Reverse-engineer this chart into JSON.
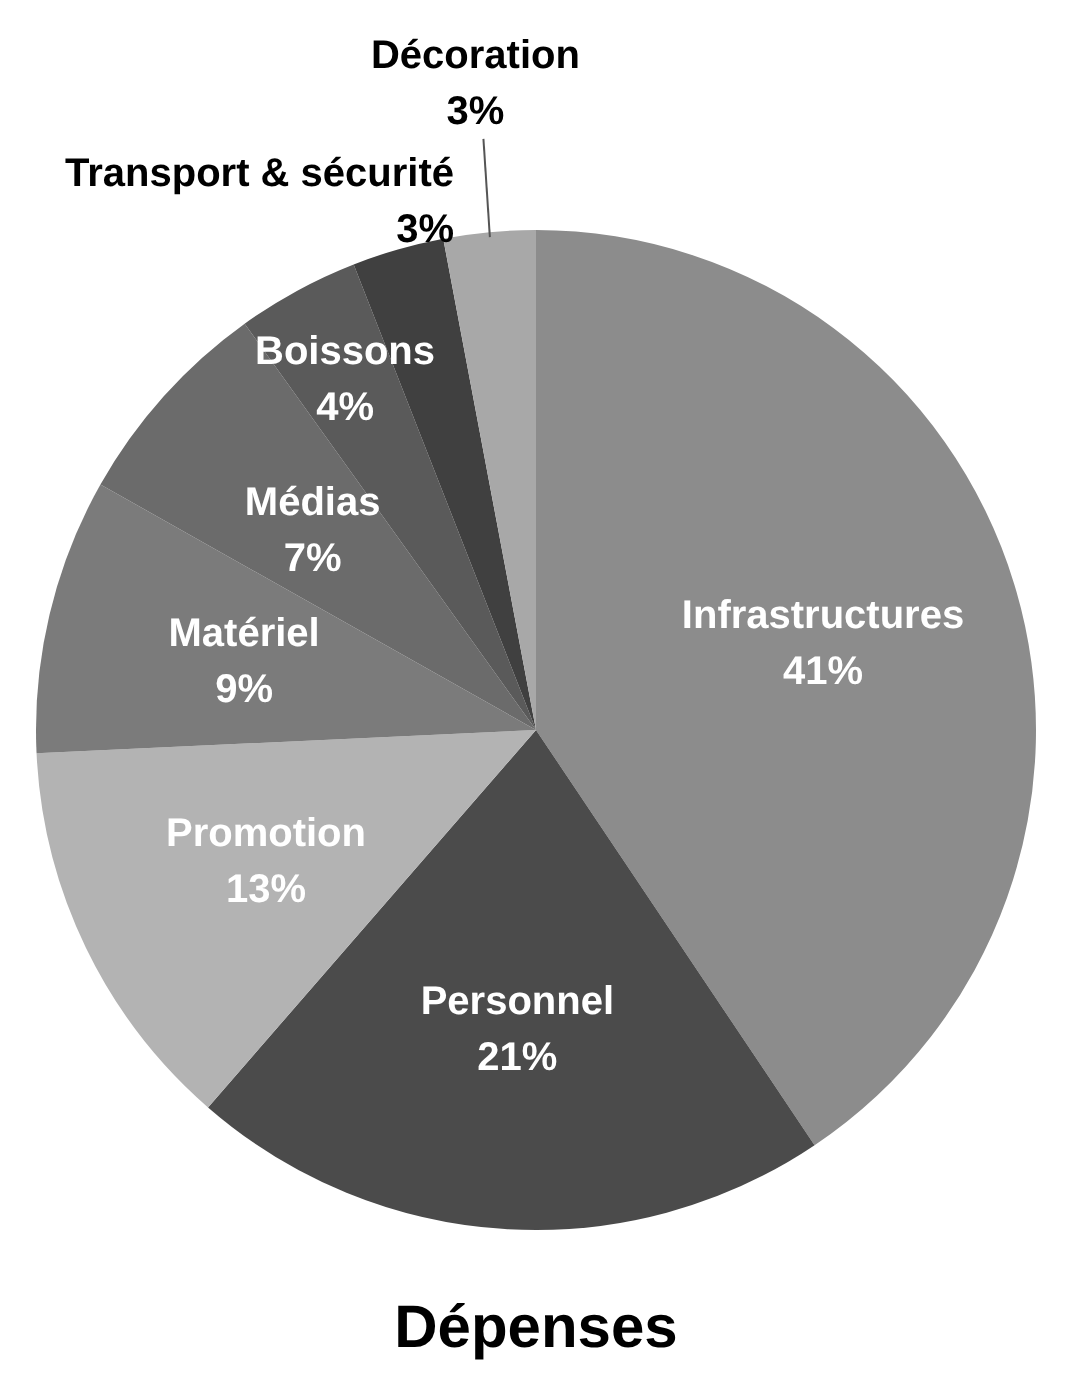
{
  "chart_data": {
    "type": "pie",
    "title": "Dépenses",
    "categories": [
      "Infrastructures",
      "Personnel",
      "Promotion",
      "Matériel",
      "Médias",
      "Boissons",
      "Transport & sécurité",
      "Décoration"
    ],
    "values": [
      41,
      21,
      13,
      9,
      7,
      4,
      3,
      3
    ],
    "value_labels": [
      "41%",
      "21%",
      "13%",
      "9%",
      "7%",
      "4%",
      "3%",
      "3%"
    ],
    "colors": [
      "#8c8c8c",
      "#4b4b4b",
      "#b3b3b3",
      "#7b7b7b",
      "#6b6b6b",
      "#5a5a5a",
      "#404040",
      "#a8a8a8"
    ]
  }
}
